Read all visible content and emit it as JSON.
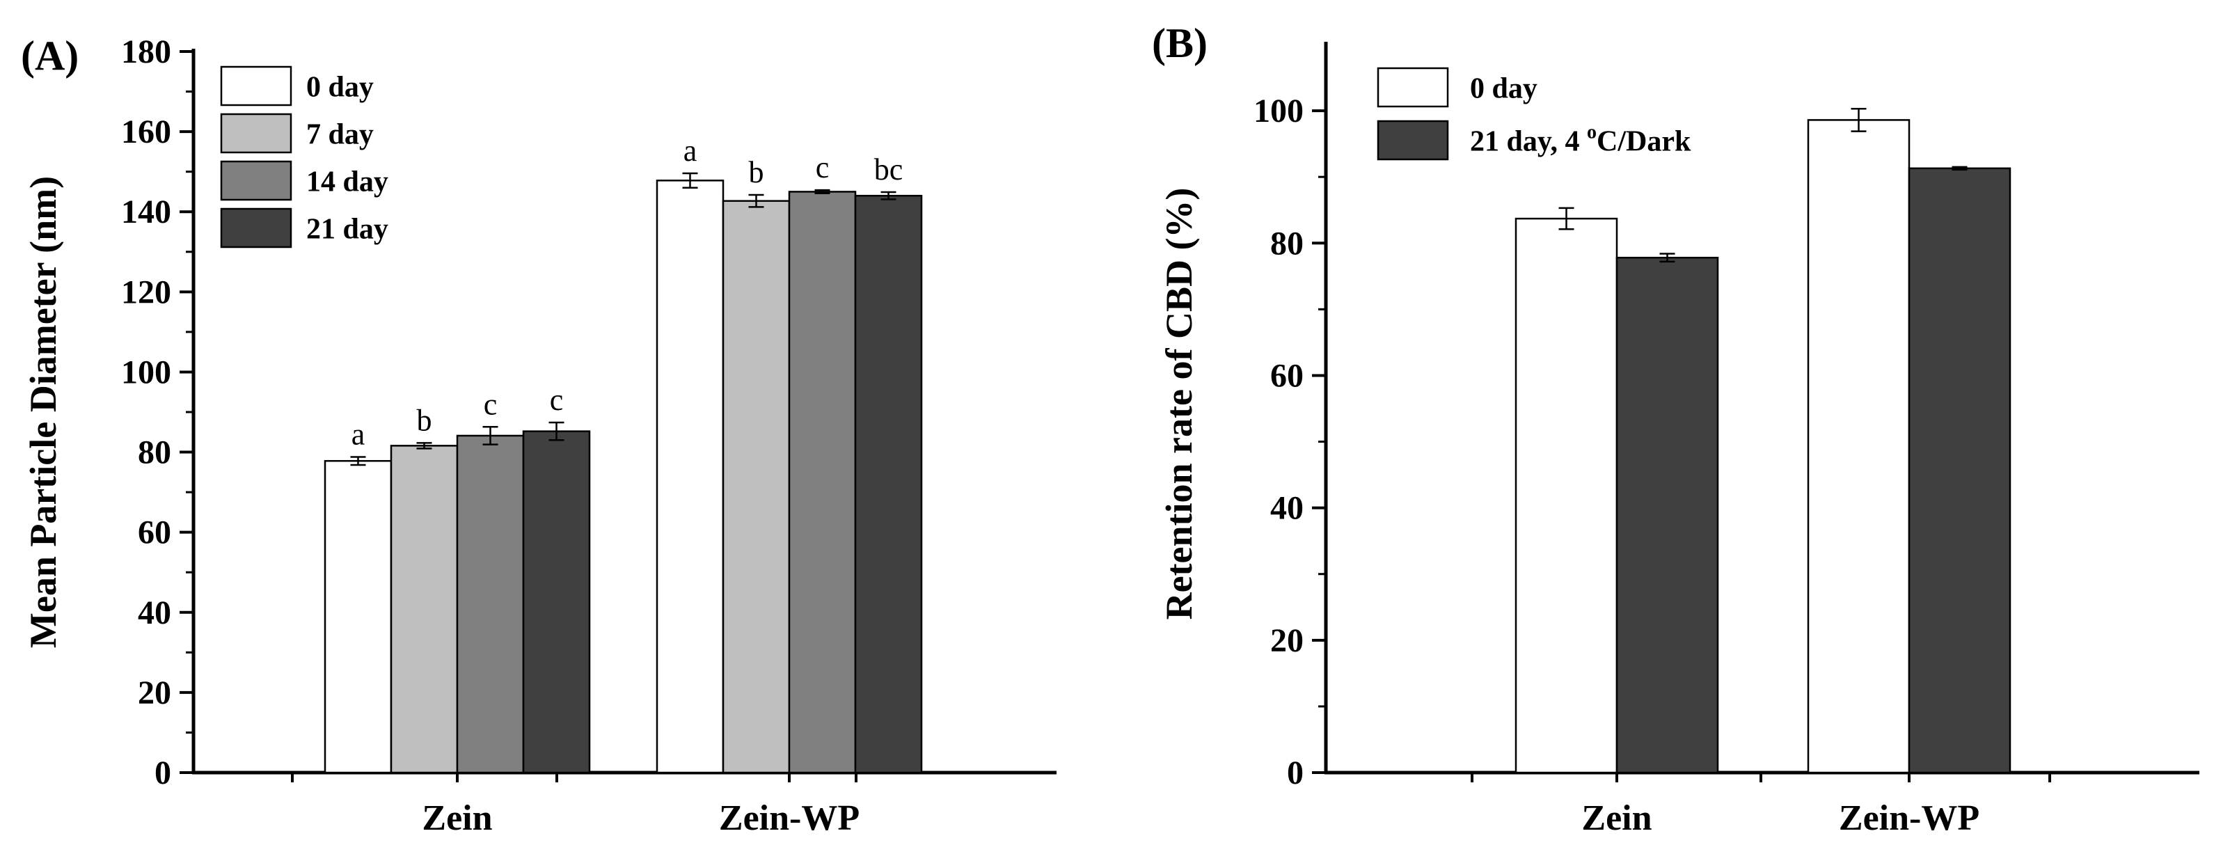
{
  "chart_data": [
    {
      "type": "bar",
      "panel_label": "(A)",
      "ylabel": "Mean Particle Diameter (nm)",
      "xlabel": "",
      "ylim": [
        0,
        180
      ],
      "yticks": [
        0,
        20,
        40,
        60,
        80,
        100,
        120,
        140,
        160,
        180
      ],
      "categories": [
        "Zein",
        "Zein-WP"
      ],
      "legend_position": "top-left",
      "series": [
        {
          "name": "0 day",
          "color": "#ffffff",
          "values": [
            77.8,
            147.8
          ],
          "errors": [
            1.0,
            1.8
          ],
          "labels": [
            "a",
            "a"
          ]
        },
        {
          "name": "7 day",
          "color": "#bfbfbf",
          "values": [
            81.6,
            142.7
          ],
          "errors": [
            0.7,
            1.5
          ],
          "labels": [
            "b",
            "b"
          ]
        },
        {
          "name": "14 day",
          "color": "#808080",
          "values": [
            84.1,
            145.0
          ],
          "errors": [
            2.2,
            0.4
          ],
          "labels": [
            "c",
            "c"
          ]
        },
        {
          "name": "21 day",
          "color": "#404040",
          "values": [
            85.2,
            144.0
          ],
          "errors": [
            2.2,
            0.9
          ],
          "labels": [
            "c",
            "bc"
          ]
        }
      ]
    },
    {
      "type": "bar",
      "panel_label": "(B)",
      "ylabel": "Retention rate of CBD (%)",
      "xlabel": "",
      "ylim": [
        0,
        110
      ],
      "yticks": [
        0,
        20,
        40,
        60,
        80,
        100
      ],
      "categories": [
        "Zein",
        "Zein-WP"
      ],
      "legend_position": "top-left",
      "series": [
        {
          "name": "0 day",
          "legend_main": "0 day",
          "legend_sup": "",
          "legend_tail": "",
          "color": "#ffffff",
          "values": [
            83.7,
            98.6
          ],
          "errors": [
            1.6,
            1.7
          ]
        },
        {
          "name": "21 day, 4 oC/Dark",
          "legend_main": "21 day, 4 ",
          "legend_sup": "o",
          "legend_tail": "C/Dark",
          "color": "#404040",
          "values": [
            77.8,
            91.3
          ],
          "errors": [
            0.6,
            0.2
          ]
        }
      ]
    }
  ]
}
